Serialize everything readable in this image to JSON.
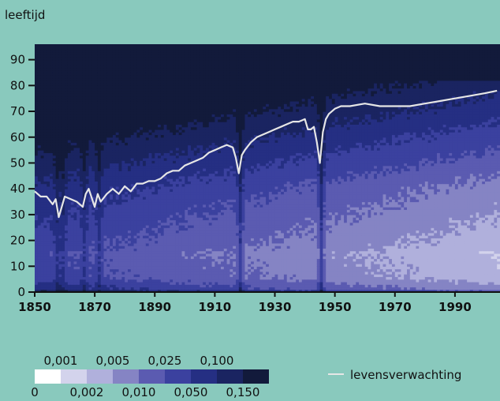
{
  "chart_data": {
    "type": "heatmap",
    "title": "",
    "ylabel": "leeftijd",
    "xlabel": "",
    "xlim": [
      1850,
      2005
    ],
    "ylim": [
      0,
      96
    ],
    "x_ticks": [
      1850,
      1870,
      1890,
      1910,
      1930,
      1950,
      1970,
      1990
    ],
    "y_ticks": [
      0,
      10,
      20,
      30,
      40,
      50,
      60,
      70,
      80,
      90
    ],
    "color_scale": {
      "colors": [
        "#ffffff",
        "#d3d3ec",
        "#b0b0dc",
        "#8584c4",
        "#5b5bb1",
        "#3b419f",
        "#252f83",
        "#1a2461",
        "#121a3b"
      ],
      "thresholds_top": [
        "0,001",
        "0,005",
        "0,025",
        "0,100"
      ],
      "thresholds_bottom": [
        "0",
        "0,002",
        "0,010",
        "0,050",
        "0,150"
      ]
    },
    "heatmap_note_levels": "cell value = color class index 0..8 of the color scale",
    "series": [
      {
        "name": "levensverwachting",
        "color": "#e6e6e6",
        "x": [
          1850,
          1852,
          1854,
          1856,
          1857,
          1858,
          1860,
          1862,
          1864,
          1866,
          1867,
          1868,
          1870,
          1871,
          1872,
          1874,
          1876,
          1878,
          1880,
          1882,
          1884,
          1886,
          1888,
          1890,
          1892,
          1894,
          1896,
          1898,
          1900,
          1902,
          1904,
          1906,
          1908,
          1910,
          1912,
          1914,
          1916,
          1917,
          1918,
          1919,
          1920,
          1922,
          1924,
          1926,
          1928,
          1930,
          1932,
          1934,
          1936,
          1938,
          1940,
          1941,
          1942,
          1943,
          1944,
          1945,
          1946,
          1947,
          1948,
          1950,
          1952,
          1955,
          1960,
          1965,
          1970,
          1975,
          1980,
          1985,
          1990,
          1995,
          2000,
          2004
        ],
        "y": [
          39,
          37,
          37,
          34,
          36,
          29,
          37,
          36,
          35,
          33,
          38,
          40,
          33,
          38,
          35,
          38,
          40,
          38,
          41,
          39,
          42,
          42,
          43,
          43,
          44,
          46,
          47,
          47,
          49,
          50,
          51,
          52,
          54,
          55,
          56,
          57,
          56,
          52,
          46,
          53,
          55,
          58,
          60,
          61,
          62,
          63,
          64,
          65,
          66,
          66,
          67,
          63,
          63,
          64,
          58,
          50,
          62,
          67,
          69,
          71,
          72,
          72,
          73,
          72,
          72,
          72,
          73,
          74,
          75,
          76,
          77,
          78
        ]
      }
    ]
  },
  "legend": {
    "line_label": "levensverwachting"
  }
}
